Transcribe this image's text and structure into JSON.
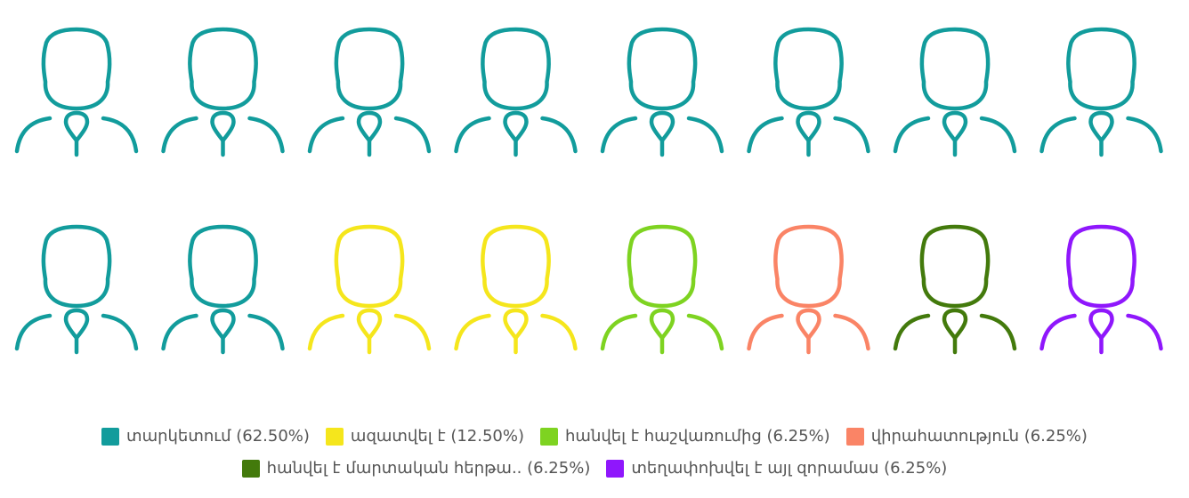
{
  "chart_data": {
    "type": "pictogram",
    "icon": "person-icon",
    "total_icons": 16,
    "series": [
      {
        "name": "տարկետում",
        "percent": "62.50%",
        "count": 10,
        "color": "#129c9c"
      },
      {
        "name": "ազատվել է",
        "percent": "12.50%",
        "count": 2,
        "color": "#f5e61c"
      },
      {
        "name": "հանվել է հաշվառումից",
        "percent": "6.25%",
        "count": 1,
        "color": "#7ed321"
      },
      {
        "name": "վիրահատություն",
        "percent": "6.25%",
        "count": 1,
        "color": "#fa8466"
      },
      {
        "name": "հանվել է մարտական հերթա..",
        "percent": "6.25%",
        "count": 1,
        "color": "#437a0c"
      },
      {
        "name": "տեղափոխվել է այլ զորամաս",
        "percent": "6.25%",
        "count": 1,
        "color": "#8f17fc"
      }
    ]
  }
}
